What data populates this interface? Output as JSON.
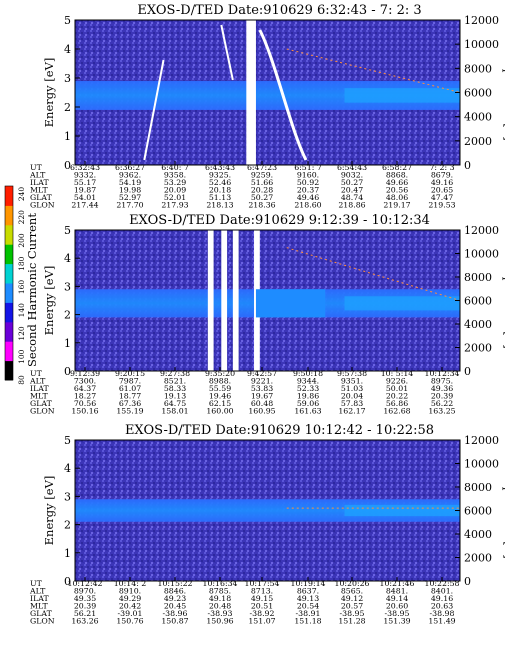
{
  "chart_data": [
    {
      "type": "heatmap",
      "title": "EXOS-D/TED   Date:910629  6:32:43 - 7: 2: 3",
      "ylabel": "Energy [eV]",
      "ylabel_right": "Temperature [K]",
      "ylim": [
        0,
        5
      ],
      "ylim_right": [
        0,
        12000
      ],
      "yticks": [
        "0",
        "1",
        "2",
        "3",
        "4",
        "5"
      ],
      "yticks_right": [
        "0",
        "2000",
        "4000",
        "6000",
        "8000",
        "10000",
        "12000"
      ],
      "band_energy_ev": [
        1.9,
        2.9
      ],
      "temperature_trace_k": {
        "start": 9600,
        "end": 6000
      },
      "gaps": [
        "6:45:20",
        "6:46:10"
      ],
      "table": {
        "row_labels": [
          "UT",
          "ALT",
          "ILAT",
          "MLT",
          "GLAT",
          "GLON"
        ],
        "columns": [
          [
            "6:32:43",
            "9332.",
            "55.17",
            "19.87",
            "54.01",
            "217.44"
          ],
          [
            "6:36:27",
            "9362.",
            "54.19",
            "19.98",
            "52.97",
            "217.70"
          ],
          [
            "6:40: 7",
            "9358.",
            "53.29",
            "20.09",
            "52.01",
            "217.93"
          ],
          [
            "6:43:43",
            "9325.",
            "52.46",
            "20.18",
            "51.13",
            "218.13"
          ],
          [
            "6:47:23",
            "9259.",
            "51.66",
            "20.28",
            "50.27",
            "218.36"
          ],
          [
            "6:51: 7",
            "9160.",
            "50.92",
            "20.37",
            "49.46",
            "218.60"
          ],
          [
            "6:54:43",
            "9032.",
            "50.27",
            "20.47",
            "48.74",
            "218.86"
          ],
          [
            "6:58:27",
            "8868.",
            "49.66",
            "20.56",
            "48.06",
            "219.17"
          ],
          [
            "7: 2: 3",
            "8679.",
            "49.16",
            "20.65",
            "47.47",
            "219.53"
          ]
        ]
      }
    },
    {
      "type": "heatmap",
      "title": "EXOS-D/TED   Date:910629  9:12:39 - 10:12:34",
      "ylabel": "Energy [eV]",
      "ylabel_right": "Temperature [K]",
      "ylim": [
        0,
        5
      ],
      "ylim_right": [
        0,
        12000
      ],
      "yticks": [
        "0",
        "1",
        "2",
        "3",
        "4",
        "5"
      ],
      "yticks_right": [
        "0",
        "2000",
        "4000",
        "6000",
        "8000",
        "10000",
        "12000"
      ],
      "band_energy_ev": [
        1.9,
        2.9
      ],
      "temperature_trace_k": {
        "start": 10500,
        "end": 6000
      },
      "table": {
        "row_labels": [
          "UT",
          "ALT",
          "ILAT",
          "MLT",
          "GLAT",
          "GLON"
        ],
        "columns": [
          [
            "9:12:39",
            "7300.",
            "64.37",
            "18.27",
            "70.56",
            "150.16"
          ],
          [
            "9:20:15",
            "7987.",
            "61.07",
            "18.77",
            "67.36",
            "155.19"
          ],
          [
            "9:27:38",
            "8521.",
            "58.33",
            "19.13",
            "64.75",
            "158.01"
          ],
          [
            "9:35:20",
            "8988.",
            "55.59",
            "19.46",
            "62.15",
            "160.00"
          ],
          [
            "9:42:57",
            "9221.",
            "53.83",
            "19.67",
            "60.48",
            "160.95"
          ],
          [
            "9:50:18",
            "9344.",
            "52.33",
            "19.86",
            "59.06",
            "161.63"
          ],
          [
            "9:57:38",
            "9351.",
            "51.03",
            "20.04",
            "57.83",
            "162.17"
          ],
          [
            "10: 5:14",
            "9226.",
            "50.01",
            "20.22",
            "56.86",
            "162.68"
          ],
          [
            "10:12:34",
            "8975.",
            "49.36",
            "20.39",
            "56.22",
            "163.25"
          ]
        ]
      }
    },
    {
      "type": "heatmap",
      "title": "EXOS-D/TED   Date:910629  10:12:42 - 10:22:58",
      "ylabel": "Energy [eV]",
      "ylabel_right": "Temperature [K]",
      "ylim": [
        0,
        5
      ],
      "ylim_right": [
        0,
        12000
      ],
      "yticks": [
        "0",
        "1",
        "2",
        "3",
        "4",
        "5"
      ],
      "yticks_right": [
        "0",
        "2000",
        "4000",
        "6000",
        "8000",
        "10000",
        "12000"
      ],
      "band_energy_ev": [
        2.1,
        2.9
      ],
      "temperature_trace_k": {
        "start": 6200,
        "end": 6200
      },
      "table": {
        "row_labels": [
          "UT",
          "ALT",
          "ILAT",
          "MLT",
          "GLAT",
          "GLON"
        ],
        "columns": [
          [
            "10:12:42",
            "8970.",
            "49.35",
            "20.39",
            "56.21",
            "163.26"
          ],
          [
            "10:14: 2",
            "8910.",
            "49.29",
            "20.42",
            "-39.01",
            "150.76"
          ],
          [
            "10:15:22",
            "8846.",
            "49.23",
            "20.45",
            "-38.96",
            "150.87"
          ],
          [
            "10:16:34",
            "8785.",
            "49.18",
            "20.48",
            "-38.93",
            "150.96"
          ],
          [
            "10:17:54",
            "8713.",
            "49.15",
            "20.51",
            "-38.92",
            "151.07"
          ],
          [
            "10:19:14",
            "8637.",
            "49.13",
            "20.54",
            "-38.91",
            "151.18"
          ],
          [
            "10:20:26",
            "8565.",
            "49.12",
            "20.57",
            "-38.95",
            "151.28"
          ],
          [
            "10:21:46",
            "8481.",
            "49.14",
            "20.60",
            "-38.95",
            "151.39"
          ],
          [
            "10:22:58",
            "8401.",
            "49.16",
            "20.63",
            "-38.98",
            "151.49"
          ]
        ]
      }
    }
  ],
  "colorbar": {
    "label": "Second Harmonic Current",
    "ticks": [
      "80",
      "100",
      "120",
      "140",
      "160",
      "180",
      "200",
      "220",
      "240"
    ],
    "colors": [
      "#000000",
      "#ff00ff",
      "#6a00d8",
      "#1414e6",
      "#1e8cff",
      "#00d2d2",
      "#00c200",
      "#c8dc00",
      "#ff9600",
      "#ff1e00"
    ]
  }
}
